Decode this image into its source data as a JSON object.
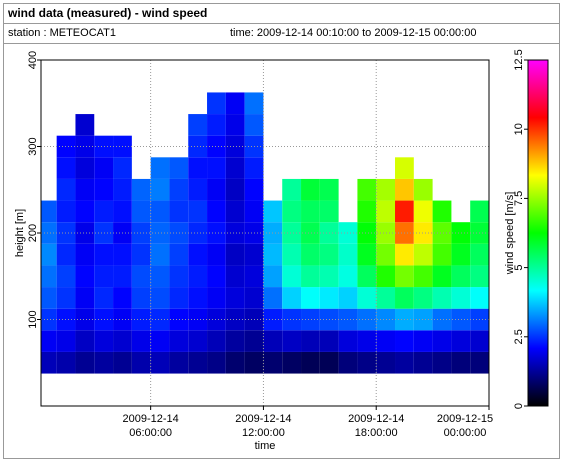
{
  "chart_data": {
    "type": "heatmap",
    "title": "wind data (measured) - wind speed",
    "station": "station : METEOCAT1",
    "period": "time: 2009-12-14 00:10:00 to 2009-12-15 00:00:00",
    "x_label": "time",
    "y_label": "height [m]",
    "colorbar_label": "wind speed [m/s]",
    "x": [
      "2009-12-14 00:30:00",
      "2009-12-14 01:30:00",
      "2009-12-14 02:30:00",
      "2009-12-14 03:30:00",
      "2009-12-14 04:30:00",
      "2009-12-14 05:30:00",
      "2009-12-14 06:30:00",
      "2009-12-14 07:30:00",
      "2009-12-14 08:30:00",
      "2009-12-14 09:30:00",
      "2009-12-14 10:30:00",
      "2009-12-14 11:30:00",
      "2009-12-14 12:30:00",
      "2009-12-14 13:30:00",
      "2009-12-14 14:30:00",
      "2009-12-14 15:30:00",
      "2009-12-14 16:30:00",
      "2009-12-14 17:30:00",
      "2009-12-14 18:30:00",
      "2009-12-14 19:30:00",
      "2009-12-14 20:30:00",
      "2009-12-14 21:30:00",
      "2009-12-14 22:30:00",
      "2009-12-14 23:30:00"
    ],
    "y": [
      50,
      75,
      100,
      125,
      150,
      175,
      200,
      225,
      250,
      275,
      300,
      325,
      350
    ],
    "values": [
      [
        1.5,
        2.0,
        2.5,
        2.8,
        3.0,
        3.2,
        3.0,
        2.8,
        null,
        null,
        null,
        null,
        null
      ],
      [
        1.4,
        1.9,
        2.2,
        2.5,
        2.6,
        2.4,
        2.5,
        2.3,
        2.4,
        2.2,
        2.1,
        null,
        null
      ],
      [
        1.2,
        1.6,
        1.9,
        2.0,
        2.1,
        2.0,
        1.9,
        2.1,
        2.0,
        1.8,
        1.9,
        1.7,
        null
      ],
      [
        1.3,
        1.8,
        2.2,
        2.4,
        2.3,
        2.2,
        2.5,
        2.3,
        2.1,
        2.0,
        2.2,
        null,
        null
      ],
      [
        1.2,
        1.7,
        2.0,
        2.1,
        2.3,
        2.2,
        2.0,
        2.2,
        2.3,
        2.4,
        2.2,
        null,
        null
      ],
      [
        1.4,
        1.9,
        2.3,
        2.6,
        2.7,
        2.5,
        2.6,
        2.8,
        2.9,
        null,
        null,
        null,
        null
      ],
      [
        1.5,
        2.0,
        2.4,
        2.7,
        2.8,
        3.0,
        2.9,
        2.8,
        3.1,
        3.0,
        null,
        null,
        null
      ],
      [
        1.3,
        1.8,
        2.1,
        2.4,
        2.5,
        2.6,
        2.7,
        2.5,
        2.6,
        2.8,
        null,
        null,
        null
      ],
      [
        1.2,
        1.7,
        2.0,
        2.2,
        2.3,
        2.2,
        2.4,
        2.5,
        2.3,
        2.2,
        2.4,
        2.6,
        null
      ],
      [
        1.1,
        1.5,
        1.8,
        2.0,
        2.1,
        2.0,
        2.2,
        2.1,
        2.0,
        2.2,
        2.1,
        2.3,
        2.5
      ],
      [
        0.9,
        1.3,
        1.6,
        1.8,
        1.7,
        1.6,
        1.8,
        1.7,
        1.6,
        1.7,
        1.8,
        1.9,
        2.0
      ],
      [
        0.8,
        1.2,
        1.5,
        1.7,
        1.8,
        1.7,
        1.9,
        2.0,
        2.1,
        2.3,
        2.5,
        2.8,
        3.0
      ],
      [
        0.9,
        1.5,
        2.3,
        3.0,
        3.4,
        3.6,
        3.5,
        3.7,
        null,
        null,
        null,
        null,
        null
      ],
      [
        0.8,
        1.6,
        2.5,
        3.8,
        4.5,
        4.8,
        5.0,
        5.2,
        5.0,
        null,
        null,
        null,
        null
      ],
      [
        0.7,
        1.5,
        2.6,
        4.2,
        5.0,
        5.4,
        5.6,
        5.5,
        5.8,
        null,
        null,
        null,
        null
      ],
      [
        0.7,
        1.5,
        2.7,
        4.0,
        4.8,
        5.2,
        5.0,
        5.4,
        5.6,
        null,
        null,
        null,
        null
      ],
      [
        1.0,
        1.8,
        2.8,
        3.8,
        4.4,
        4.6,
        4.5,
        null,
        null,
        null,
        null,
        null,
        null
      ],
      [
        1.1,
        1.9,
        3.0,
        4.5,
        5.5,
        6.0,
        6.2,
        6.5,
        6.8,
        null,
        null,
        null,
        null
      ],
      [
        1.2,
        2.0,
        3.2,
        5.0,
        6.5,
        7.2,
        7.5,
        7.8,
        7.6,
        null,
        null,
        null,
        null
      ],
      [
        1.3,
        2.1,
        3.5,
        5.5,
        7.2,
        8.5,
        9.5,
        10.2,
        8.8,
        8.0,
        null,
        null,
        null
      ],
      [
        1.2,
        2.0,
        3.4,
        5.2,
        6.8,
        7.8,
        8.5,
        8.2,
        7.5,
        null,
        null,
        null,
        null
      ],
      [
        1.1,
        1.9,
        3.0,
        4.8,
        6.0,
        6.8,
        7.0,
        6.5,
        null,
        null,
        null,
        null,
        null
      ],
      [
        1.0,
        1.8,
        2.8,
        4.5,
        5.5,
        6.0,
        6.2,
        null,
        null,
        null,
        null,
        null,
        null
      ],
      [
        1.0,
        1.7,
        2.6,
        4.2,
        5.2,
        5.5,
        5.8,
        5.6,
        null,
        null,
        null,
        null,
        null
      ]
    ],
    "xlim": [
      "2009-12-14 00:10:00",
      "2009-12-15 00:00:00"
    ],
    "xticks": [
      {
        "value": "2009-12-14 06:00:00",
        "label": [
          "2009-12-14",
          "06:00:00"
        ]
      },
      {
        "value": "2009-12-14 12:00:00",
        "label": [
          "2009-12-14",
          "12:00:00"
        ]
      },
      {
        "value": "2009-12-14 18:00:00",
        "label": [
          "2009-12-14",
          "18:00:00"
        ]
      },
      {
        "value": "2009-12-15 00:00:00",
        "label": [
          "2009-12-15",
          "00:00:00"
        ]
      }
    ],
    "ylim": [
      0,
      400
    ],
    "yticks": [
      100,
      200,
      300,
      400
    ],
    "zlim": [
      0,
      12.5
    ],
    "zticks": [
      0,
      2.5,
      5,
      7.5,
      10,
      12.5
    ],
    "colormap": [
      "#000000",
      "#0000ff",
      "#00ffff",
      "#00ff00",
      "#ffff00",
      "#ff0000",
      "#ff00ff"
    ],
    "grid": true
  }
}
